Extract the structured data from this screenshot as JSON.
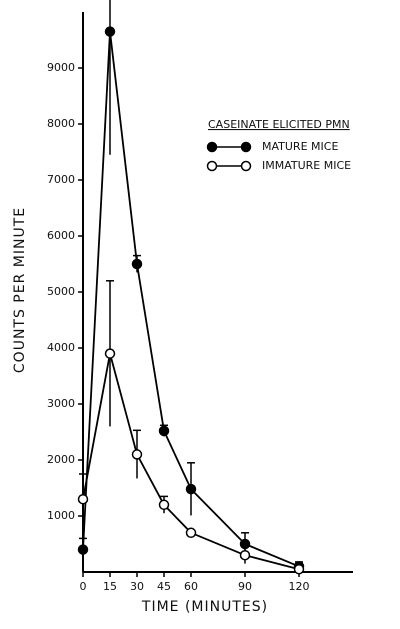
{
  "chart_data": {
    "type": "line",
    "xlabel": "TIME (MINUTES)",
    "ylabel": "COUNTS PER MINUTE",
    "legend_title": "CASEINATE ELICITED PMN",
    "x": [
      0,
      15,
      30,
      45,
      60,
      90,
      120
    ],
    "series": [
      {
        "name": "MATURE MICE",
        "color": "#000000",
        "marker_fill": "#000000",
        "values": [
          400,
          9650,
          5500,
          2520,
          1480,
          500,
          100
        ],
        "errors": [
          200,
          2200,
          150,
          100,
          470,
          200,
          80
        ]
      },
      {
        "name": "IMMATURE MICE",
        "color": "#000000",
        "marker_fill": "#ffffff",
        "values": [
          1300,
          3900,
          2100,
          1200,
          700,
          300,
          50
        ],
        "errors": [
          450,
          1300,
          430,
          150,
          0,
          150,
          0
        ]
      }
    ],
    "xlim": [
      0,
      150
    ],
    "xticks": [
      0,
      15,
      30,
      45,
      60,
      90,
      120
    ],
    "ylim": [
      0,
      10000
    ],
    "yticks": [
      1000,
      2000,
      3000,
      4000,
      5000,
      6000,
      7000,
      8000,
      9000
    ],
    "legend_position": "upper right"
  }
}
